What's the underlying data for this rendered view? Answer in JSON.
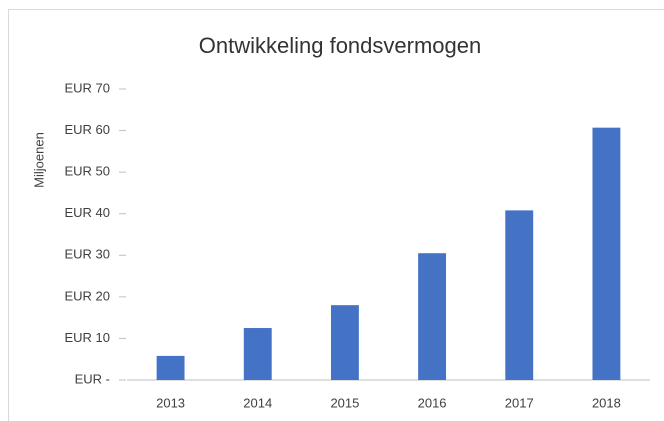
{
  "chart_data": {
    "type": "bar",
    "title": "Ontwikkeling fondsvermogen",
    "y_label": "Miljoenen",
    "categories": [
      "2013",
      "2014",
      "2015",
      "2016",
      "2017",
      "2018"
    ],
    "values": [
      5.8,
      12.5,
      18,
      30.5,
      40.8,
      60.7
    ],
    "color": "#4472c4",
    "ylim": [
      0,
      70
    ],
    "yticks": [
      {
        "value": 0,
        "label": "EUR -"
      },
      {
        "value": 10,
        "label": "EUR 10"
      },
      {
        "value": 20,
        "label": "EUR 20"
      },
      {
        "value": 30,
        "label": "EUR 30"
      },
      {
        "value": 40,
        "label": "EUR 40"
      },
      {
        "value": 50,
        "label": "EUR 50"
      },
      {
        "value": 60,
        "label": "EUR 60"
      },
      {
        "value": 70,
        "label": "EUR 70"
      }
    ],
    "grid": false
  }
}
